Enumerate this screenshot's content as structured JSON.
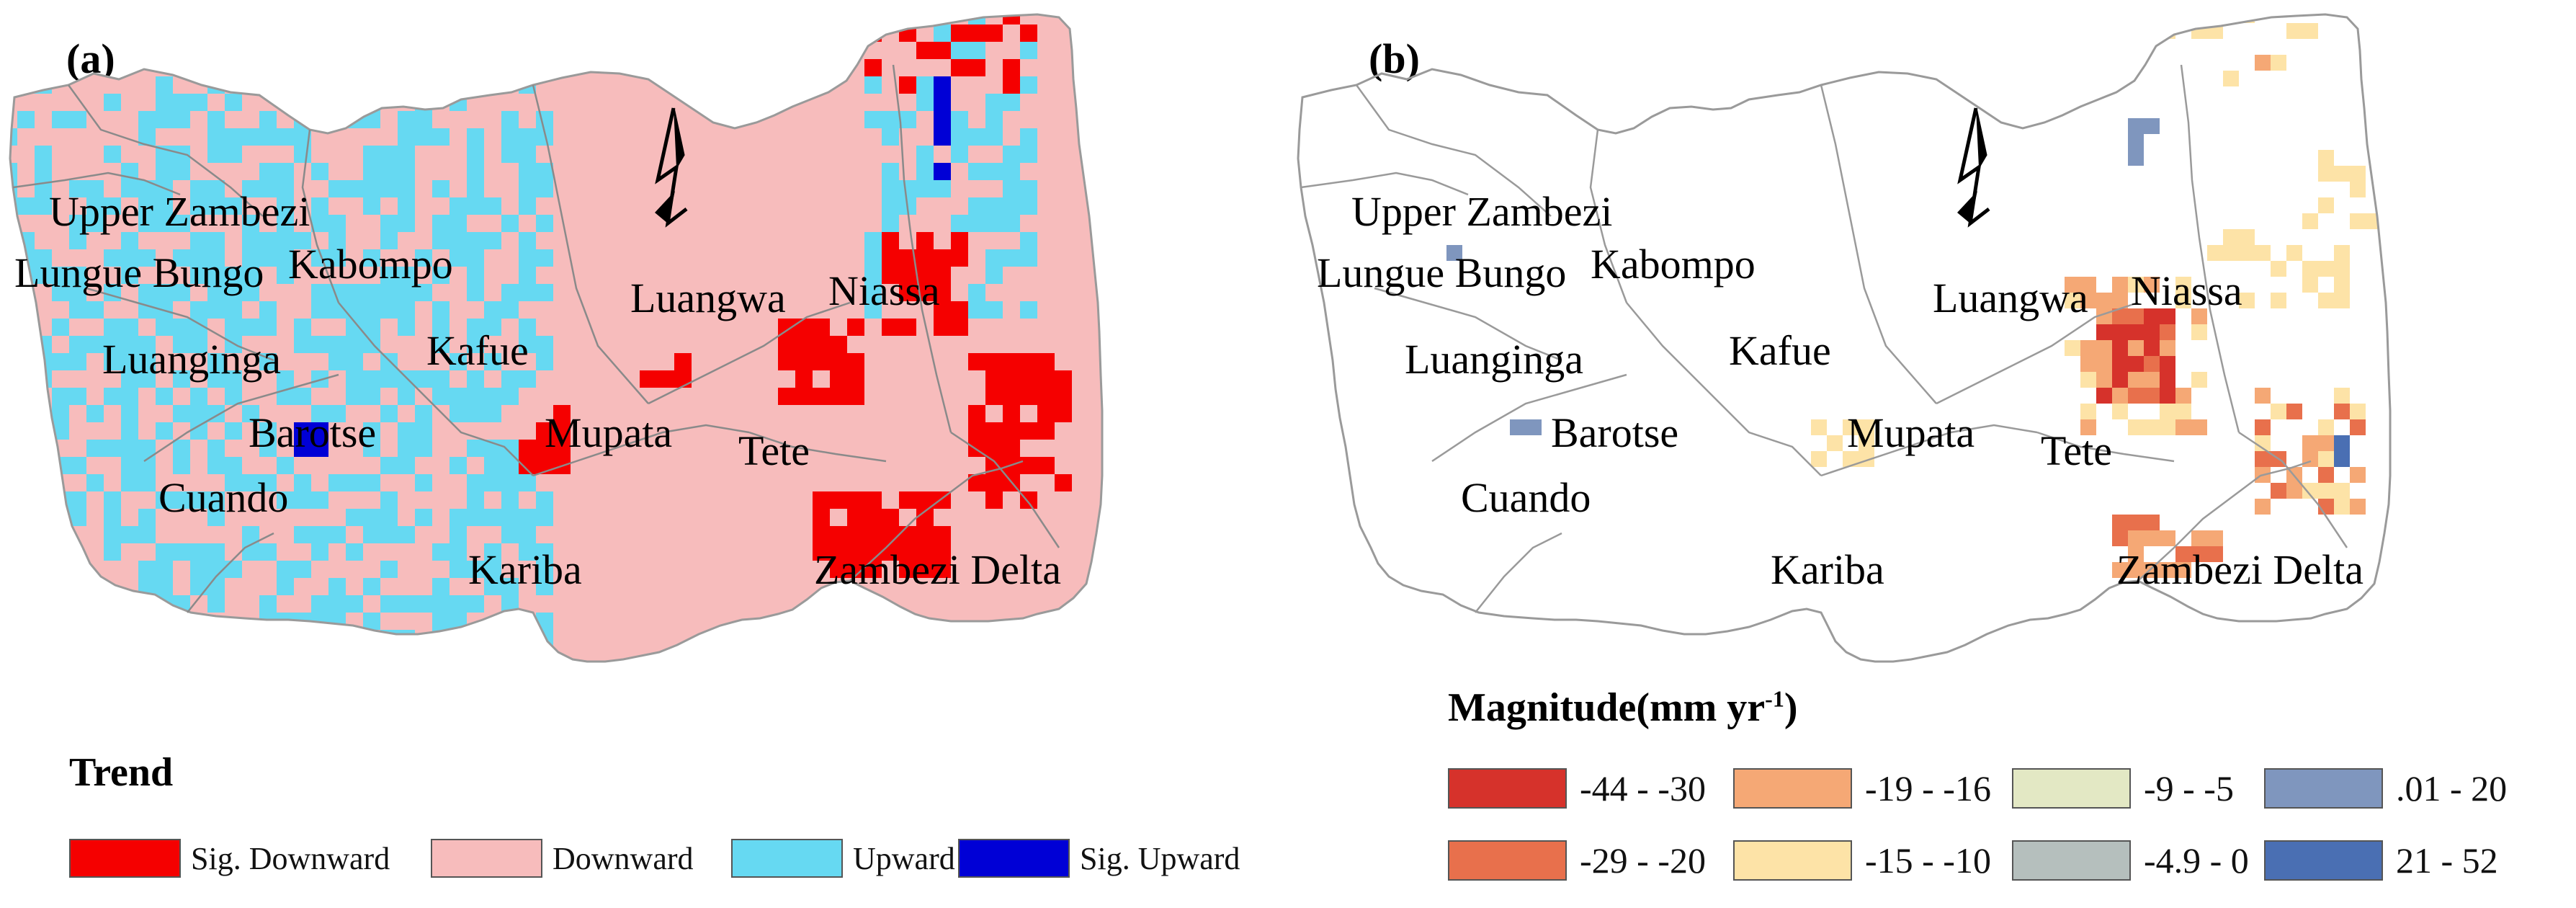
{
  "panel_a": {
    "letter": "(a)",
    "legend_title": "Trend",
    "legend": [
      {
        "label": "Sig. Downward",
        "color": "#f50000"
      },
      {
        "label": "Downward",
        "color": "#f7bcbc"
      },
      {
        "label": "Upward",
        "color": "#66d9f2"
      },
      {
        "label": "Sig. Upward",
        "color": "#0000d6"
      }
    ]
  },
  "panel_b": {
    "letter": "(b)",
    "legend_title": "Magnitude(mm yr",
    "legend_title_sup": "-1",
    "legend_title_end": ")",
    "legend": [
      {
        "label": "-44 - -30",
        "color": "#d6322b"
      },
      {
        "label": "-29 - -20",
        "color": "#e8704c"
      },
      {
        "label": "-19 - -16",
        "color": "#f5a875"
      },
      {
        "label": "-15 - -10",
        "color": "#fde3a7"
      },
      {
        "label": "-9 - -5",
        "color": "#e3e8c4"
      },
      {
        "label": "-4.9 - 0",
        "color": "#b5bfbd"
      },
      {
        "label": ".01 - 20",
        "color": "#7f96be"
      },
      {
        "label": "21 - 52",
        "color": "#4a6fb3"
      }
    ]
  },
  "regions": [
    "Upper Zambezi",
    "Lungue Bungo",
    "Kabompo",
    "Luanginga",
    "Kafue",
    "Barotse",
    "Cuando",
    "Mupata",
    "Kariba",
    "Luangwa",
    "Niassa",
    "Tete",
    "Zambezi Delta"
  ],
  "north_arrow_icon": "north-arrow-icon",
  "boundary_color": "#9a9a9a"
}
